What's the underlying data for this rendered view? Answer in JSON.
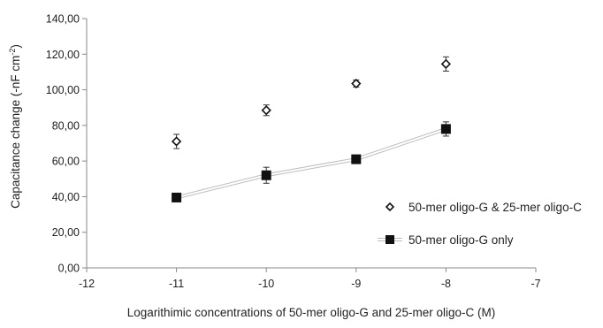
{
  "chart_data": {
    "type": "scatter",
    "title": "",
    "xlabel": "Logarithimic concentrations of 50-mer oligo-G and 25-mer oligo-C (M)",
    "ylabel": "Capacitance change (-nF cm",
    "ylabel_sup": "-2",
    "ylabel_close": ")",
    "xlim": [
      -12,
      -7
    ],
    "ylim": [
      0,
      140
    ],
    "xticks": [
      -12,
      -11,
      -10,
      -9,
      -8,
      -7
    ],
    "xtick_labels": [
      "-12",
      "-11",
      "-10",
      "-9",
      "-8",
      "-7"
    ],
    "yticks": [
      0,
      20,
      40,
      60,
      80,
      100,
      120,
      140
    ],
    "ytick_labels": [
      "0,00",
      "20,00",
      "40,00",
      "60,00",
      "80,00",
      "100,00",
      "120,00",
      "140,00"
    ],
    "grid": false,
    "legend_position": "right",
    "series": [
      {
        "name": "50-mer oligo-G & 25-mer oligo-C",
        "marker": "open-diamond",
        "line": false,
        "x": [
          -11,
          -10,
          -9,
          -8
        ],
        "y": [
          71,
          88.5,
          103.5,
          114.5
        ],
        "err": [
          4,
          3,
          2,
          4
        ]
      },
      {
        "name": "50-mer oligo-G only",
        "marker": "filled-square",
        "line": true,
        "x": [
          -11,
          -10,
          -9,
          -8
        ],
        "y": [
          39.5,
          52,
          61,
          78
        ],
        "err": [
          2,
          4.5,
          2,
          4
        ]
      }
    ]
  }
}
